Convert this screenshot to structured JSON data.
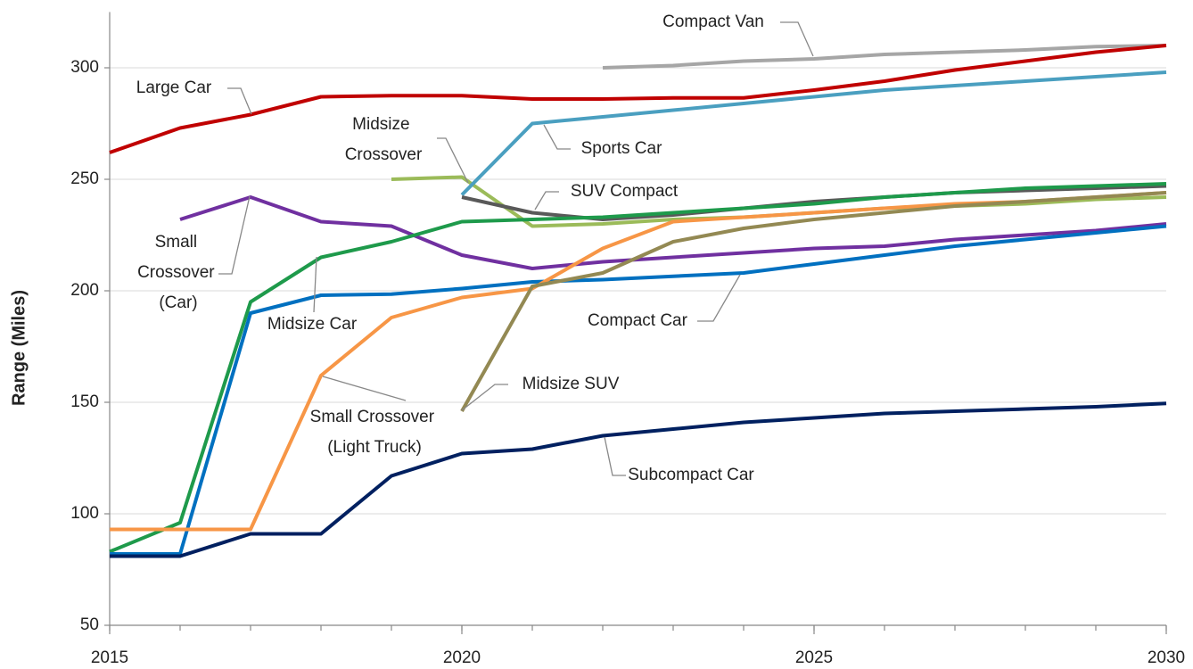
{
  "chart_data": {
    "type": "line",
    "y_label": "Range (Miles)",
    "x": [
      2015,
      2016,
      2017,
      2018,
      2019,
      2020,
      2021,
      2022,
      2023,
      2024,
      2025,
      2026,
      2027,
      2028,
      2029,
      2030
    ],
    "xlim": [
      2015,
      2030
    ],
    "xticks": [
      2015,
      2020,
      2025,
      2030
    ],
    "ylim": [
      50,
      325
    ],
    "yticks": [
      50,
      100,
      150,
      200,
      250,
      300
    ],
    "grid": true,
    "series": [
      {
        "name": "Compact Van",
        "color": "#a6a6a6",
        "values": [
          null,
          null,
          null,
          null,
          null,
          null,
          null,
          300,
          301,
          303,
          304,
          306,
          307,
          308,
          309.5,
          310
        ]
      },
      {
        "name": "Large Car",
        "color": "#c00000",
        "values": [
          262,
          273,
          279,
          287,
          287.5,
          287.5,
          286,
          286,
          286.5,
          286.5,
          290,
          294,
          299,
          303,
          307,
          310
        ]
      },
      {
        "name": "Midsize Crossover",
        "color": "#9bbb59",
        "values": [
          null,
          null,
          null,
          null,
          250,
          251,
          229,
          230,
          232,
          233,
          235,
          237,
          238,
          239,
          241,
          242
        ]
      },
      {
        "name": "Sports Car",
        "color": "#4a9fc0",
        "values": [
          null,
          null,
          null,
          null,
          null,
          243,
          275,
          278,
          281,
          284,
          287,
          290,
          292,
          294,
          296,
          298
        ]
      },
      {
        "name": "SUV Compact",
        "color": "#595959",
        "values": [
          null,
          null,
          null,
          null,
          null,
          242,
          235,
          232,
          234,
          237,
          240,
          242,
          244,
          245,
          246,
          247
        ]
      },
      {
        "name": "Small Crossover (Car)",
        "color": "#7030a0",
        "values": [
          null,
          232,
          242,
          231,
          229,
          216,
          210,
          213,
          215,
          217,
          219,
          220,
          223,
          225,
          227,
          230
        ]
      },
      {
        "name": "Midsize Car",
        "color": "#1e9a4b",
        "values": [
          83,
          96,
          195,
          215,
          222,
          231,
          232,
          233,
          235,
          237,
          239,
          242,
          244,
          246,
          247,
          248
        ]
      },
      {
        "name": "Compact Car",
        "color": "#0070c0",
        "values": [
          82,
          82,
          190,
          198,
          198.5,
          201,
          204,
          205,
          206.5,
          208,
          212,
          216,
          220,
          223,
          226,
          229
        ]
      },
      {
        "name": "Small Crossover (Light Truck)",
        "color": "#f79646",
        "values": [
          93,
          93,
          93,
          162,
          188,
          197,
          201,
          219,
          231,
          233,
          235,
          237,
          239,
          240,
          242,
          244
        ]
      },
      {
        "name": "Midsize SUV",
        "color": "#938953",
        "values": [
          null,
          null,
          null,
          null,
          null,
          146,
          202,
          208,
          222,
          228,
          232,
          235,
          238,
          240,
          242,
          244
        ]
      },
      {
        "name": "Subcompact Car",
        "color": "#002060",
        "values": [
          81,
          81,
          91,
          91,
          117,
          127,
          129,
          135,
          138,
          141,
          143,
          145,
          146,
          147,
          148,
          149.5
        ]
      }
    ]
  }
}
